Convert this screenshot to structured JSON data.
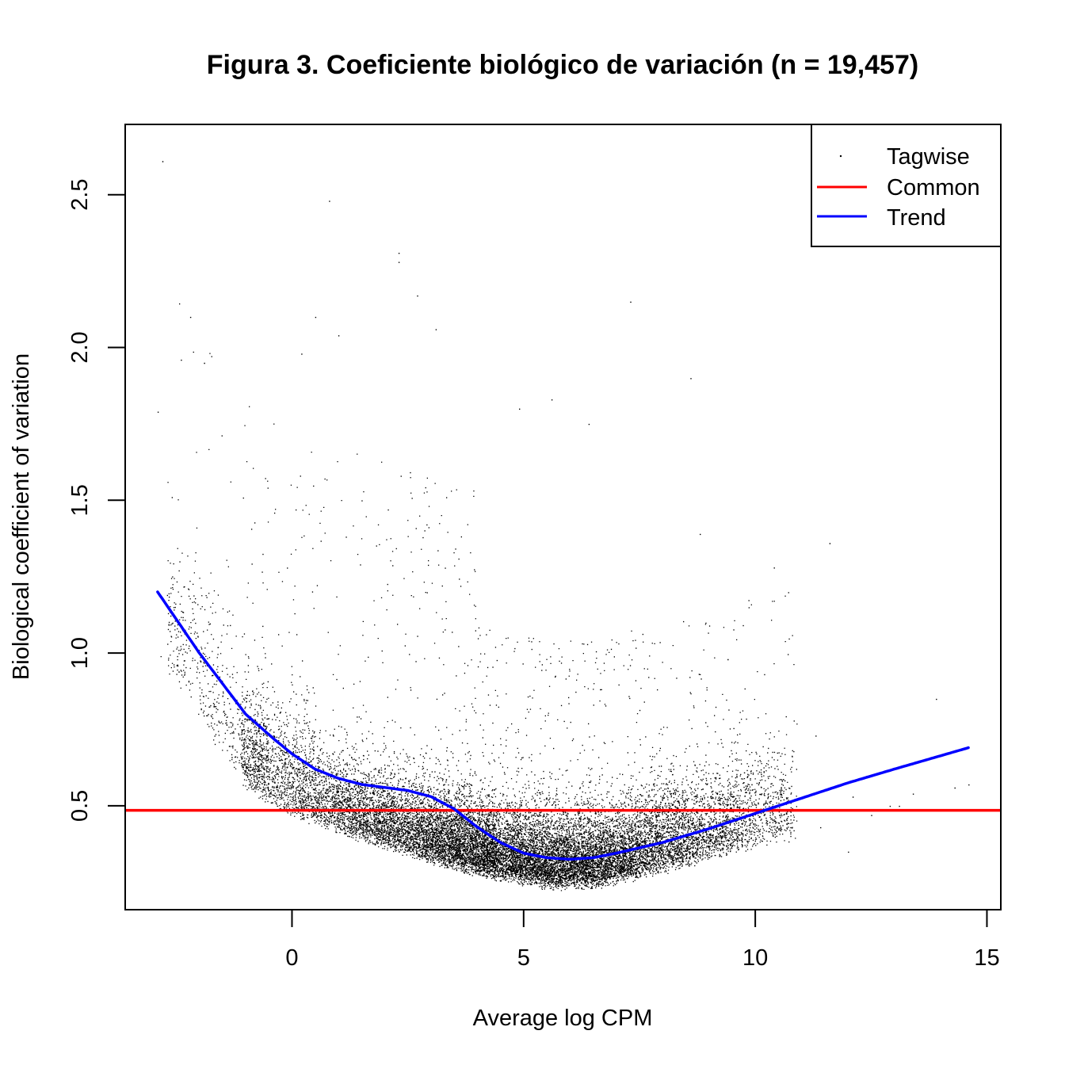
{
  "chart_data": {
    "type": "scatter",
    "title": "Figura 3. Coeficiente biológico de variación (n = 19,457)",
    "xlabel": "Average log CPM",
    "ylabel": "Biological coefficient of variation",
    "xlim": [
      -3.6,
      15.3
    ],
    "ylim": [
      0.16,
      2.73
    ],
    "x_ticks": [
      0,
      5,
      10,
      15
    ],
    "y_ticks": [
      0.5,
      1.0,
      1.5,
      2.0,
      2.5
    ],
    "x_tick_labels": [
      "0",
      "5",
      "10",
      "15"
    ],
    "y_tick_labels": [
      "0.5",
      "1.0",
      "1.5",
      "2.0",
      "2.5"
    ],
    "grid": false,
    "legend_position": "top-right",
    "n_points": 19457,
    "colors": {
      "tagwise": "#000000",
      "common": "#ff0000",
      "trend": "#0000ff"
    },
    "series": [
      {
        "name": "Tagwise",
        "kind": "points",
        "outliers": [
          [
            -2.8,
            2.61
          ],
          [
            0.8,
            2.48
          ],
          [
            2.3,
            2.31
          ],
          [
            2.3,
            2.28
          ],
          [
            2.7,
            2.17
          ],
          [
            -2.2,
            2.1
          ],
          [
            0.5,
            2.1
          ],
          [
            3.1,
            2.06
          ],
          [
            7.3,
            2.15
          ],
          [
            -1.9,
            1.95
          ],
          [
            -2.4,
            1.96
          ],
          [
            0.2,
            1.98
          ],
          [
            -2.9,
            1.79
          ],
          [
            1.0,
            2.04
          ],
          [
            8.6,
            1.9
          ],
          [
            4.9,
            1.8
          ],
          [
            5.6,
            1.83
          ],
          [
            6.4,
            1.75
          ],
          [
            11.6,
            1.36
          ],
          [
            10.4,
            1.28
          ],
          [
            8.8,
            1.39
          ],
          [
            13.9,
            0.85
          ],
          [
            11.3,
            0.73
          ],
          [
            9.4,
            0.98
          ],
          [
            14.6,
            0.57
          ],
          [
            12.1,
            0.53
          ],
          [
            12.9,
            0.5
          ],
          [
            13.1,
            0.5
          ],
          [
            12.5,
            0.47
          ],
          [
            12.0,
            0.35
          ],
          [
            11.4,
            0.43
          ],
          [
            14.3,
            0.56
          ],
          [
            13.4,
            0.54
          ]
        ]
      },
      {
        "name": "Common",
        "kind": "hline",
        "y": 0.485
      },
      {
        "name": "Trend",
        "kind": "line",
        "x": [
          -2.9,
          -2.0,
          -1.0,
          -0.4,
          0.0,
          0.5,
          1.0,
          1.5,
          2.0,
          2.5,
          3.0,
          3.5,
          4.0,
          4.5,
          5.0,
          5.5,
          6.0,
          6.5,
          7.0,
          8.0,
          9.0,
          10.0,
          11.0,
          12.0,
          13.0,
          14.6
        ],
        "y": [
          1.2,
          1.0,
          0.8,
          0.72,
          0.67,
          0.62,
          0.59,
          0.57,
          0.56,
          0.55,
          0.53,
          0.49,
          0.43,
          0.38,
          0.345,
          0.33,
          0.325,
          0.33,
          0.345,
          0.38,
          0.425,
          0.475,
          0.525,
          0.575,
          0.62,
          0.69
        ]
      }
    ]
  }
}
